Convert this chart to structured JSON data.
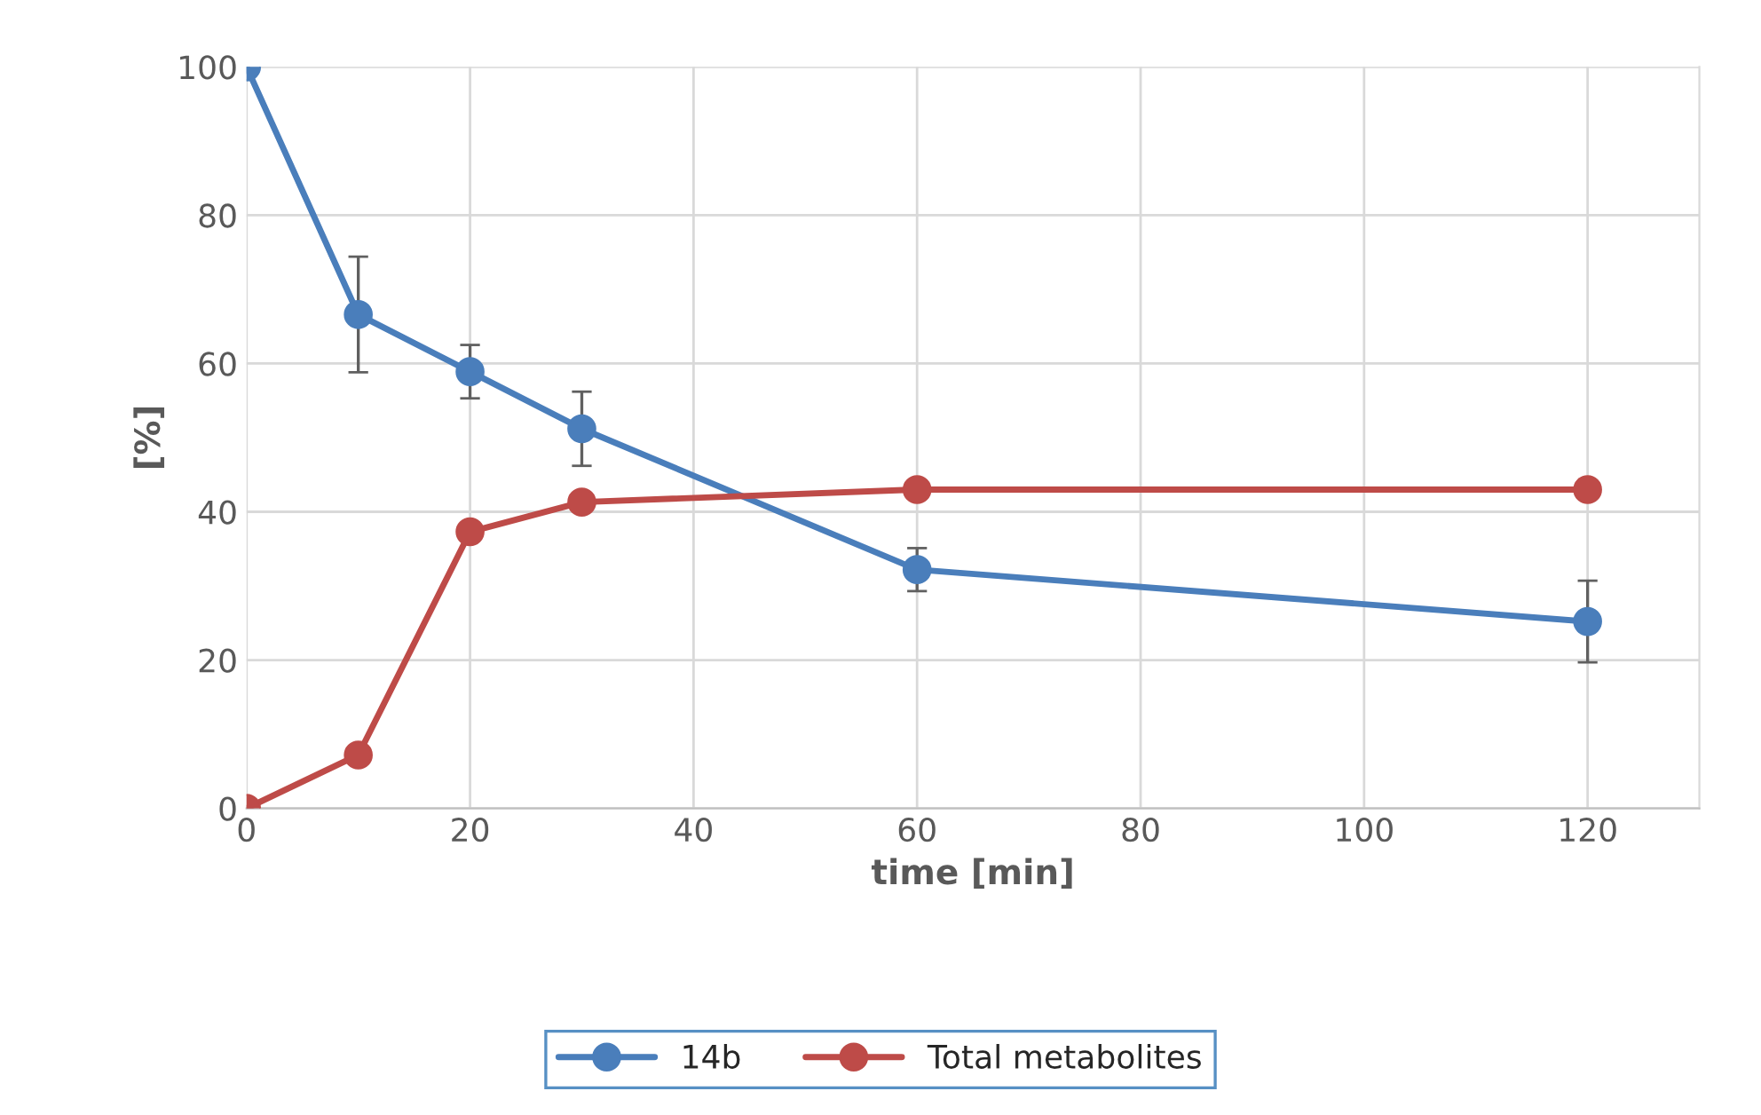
{
  "chart_data": {
    "type": "line",
    "xlabel": "time [min]",
    "ylabel": "[%]",
    "x": [
      0,
      10,
      20,
      30,
      60,
      120
    ],
    "series": [
      {
        "name": "14b",
        "color": "#4a7ebb",
        "values": [
          100,
          66.6,
          58.9,
          51.2,
          32.2,
          25.2
        ],
        "errors": [
          null,
          7.8,
          3.6,
          5.0,
          2.9,
          5.5
        ]
      },
      {
        "name": "Total metabolites",
        "color": "#be4b48",
        "values": [
          0,
          7.2,
          37.3,
          41.3,
          43.0,
          43.0
        ]
      }
    ],
    "xlim": [
      0,
      130
    ],
    "xticks": [
      0,
      20,
      40,
      60,
      80,
      100,
      120
    ],
    "ylim": [
      0,
      100
    ],
    "yticks": [
      0,
      20,
      40,
      60,
      80,
      100
    ],
    "grid": true,
    "legend": "bottom",
    "marker": "circle",
    "line_style": "solid"
  }
}
